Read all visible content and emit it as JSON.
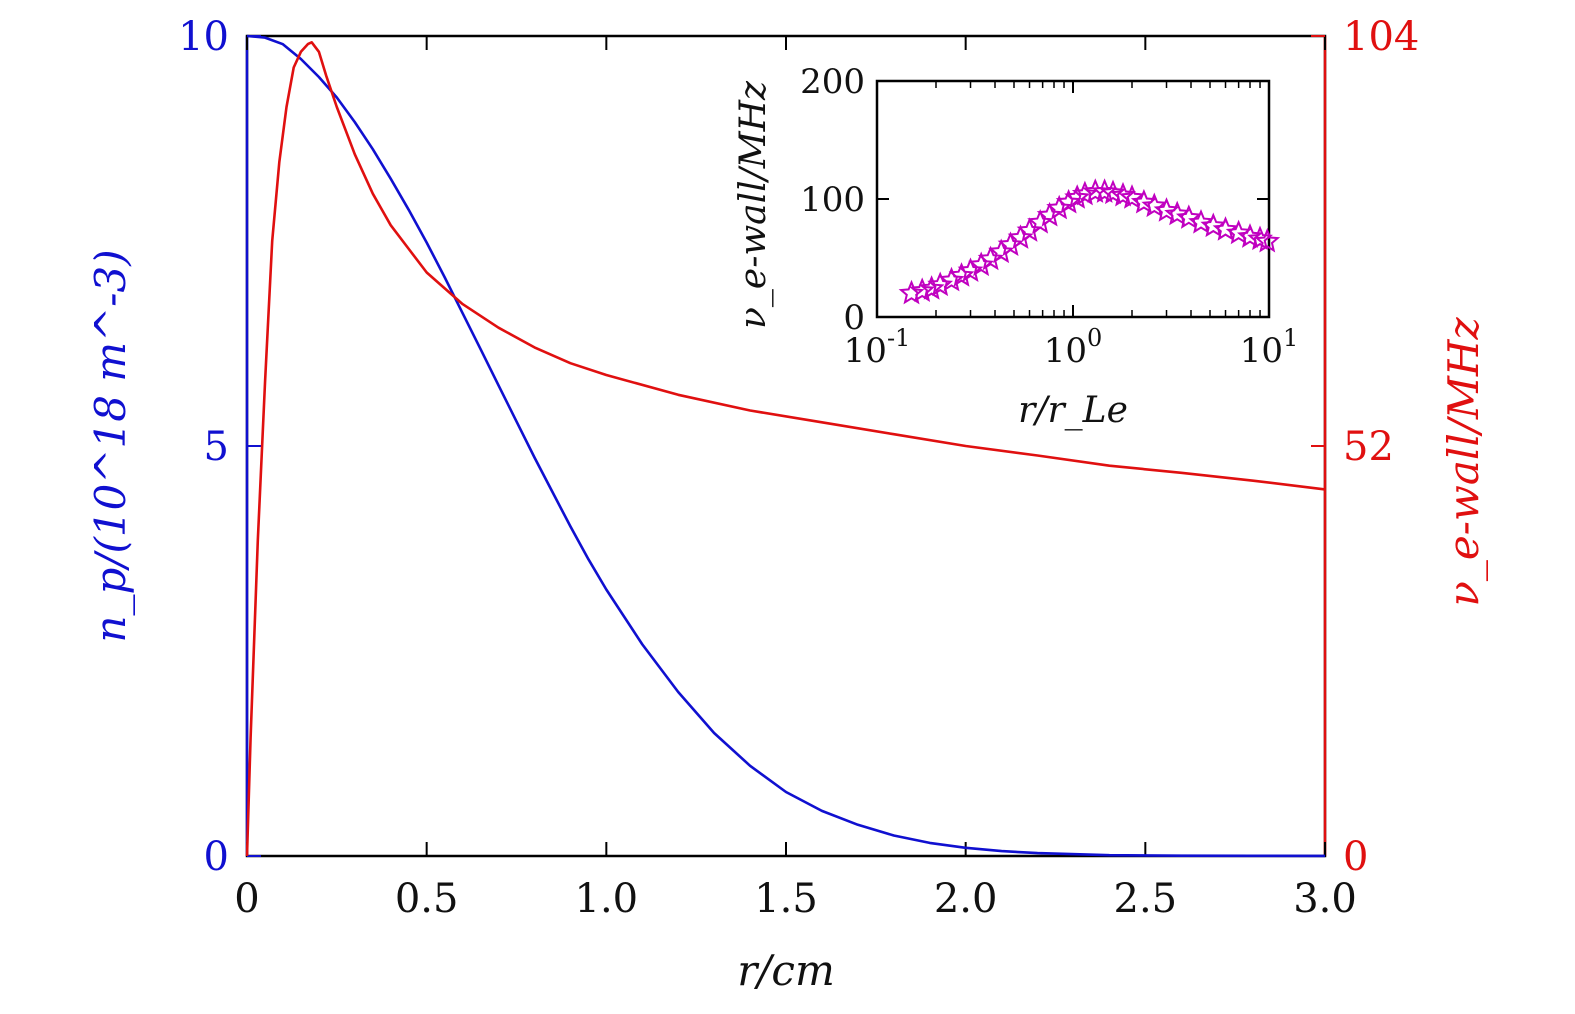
{
  "chart_data": [
    {
      "type": "line",
      "xlabel": "r/cm",
      "ylabel_left": "n_p/(10^18 m^-3)",
      "ylabel_right": "ν_e-wall/MHz",
      "xlim": [
        0,
        3.0
      ],
      "ylim_left": [
        0,
        10
      ],
      "ylim_right": [
        0,
        104
      ],
      "x_ticks": [
        "0",
        "0.5",
        "1.0",
        "1.5",
        "2.0",
        "2.5",
        "3.0"
      ],
      "y_left_ticks": [
        "0",
        "5",
        "10"
      ],
      "y_right_ticks": [
        "0",
        "52",
        "104"
      ],
      "series": [
        {
          "name": "n_p",
          "axis": "left",
          "color": "#1010d0",
          "x": [
            0,
            0.05,
            0.1,
            0.15,
            0.2,
            0.25,
            0.3,
            0.35,
            0.4,
            0.45,
            0.5,
            0.55,
            0.6,
            0.65,
            0.7,
            0.75,
            0.8,
            0.85,
            0.9,
            0.95,
            1.0,
            1.1,
            1.2,
            1.3,
            1.4,
            1.5,
            1.6,
            1.7,
            1.8,
            1.9,
            2.0,
            2.1,
            2.2,
            2.4,
            2.6,
            2.8,
            3.0
          ],
          "values": [
            10.0,
            9.98,
            9.9,
            9.72,
            9.5,
            9.25,
            8.95,
            8.62,
            8.26,
            7.88,
            7.48,
            7.06,
            6.62,
            6.18,
            5.74,
            5.3,
            4.86,
            4.44,
            4.02,
            3.62,
            3.25,
            2.58,
            2.0,
            1.5,
            1.1,
            0.78,
            0.55,
            0.38,
            0.25,
            0.16,
            0.1,
            0.06,
            0.035,
            0.01,
            0.004,
            0.002,
            0.001
          ]
        },
        {
          "name": "ν_e-wall",
          "axis": "right",
          "color": "#e01010",
          "x": [
            0,
            0.01,
            0.03,
            0.05,
            0.07,
            0.09,
            0.11,
            0.13,
            0.15,
            0.17,
            0.18,
            0.2,
            0.22,
            0.25,
            0.3,
            0.35,
            0.4,
            0.45,
            0.5,
            0.6,
            0.7,
            0.8,
            0.9,
            1.0,
            1.2,
            1.4,
            1.6,
            1.8,
            2.0,
            2.2,
            2.4,
            2.6,
            2.8,
            3.0
          ],
          "values": [
            0,
            15,
            40,
            60,
            78,
            88,
            95,
            100,
            102,
            103,
            103.2,
            102,
            99,
            95,
            89,
            84,
            80,
            77,
            74,
            70,
            67,
            64.5,
            62.5,
            61,
            58.5,
            56.5,
            55,
            53.5,
            52,
            50.8,
            49.5,
            48.6,
            47.6,
            46.5
          ]
        }
      ]
    },
    {
      "type": "scatter",
      "inset": true,
      "marker": "star",
      "color": "#c000c0",
      "xlabel": "r/r_Le",
      "ylabel": "ν_e-wall/MHz",
      "xscale": "log",
      "xlim": [
        0.1,
        10
      ],
      "ylim": [
        0,
        200
      ],
      "x_ticks": [
        "10^-1",
        "10^0",
        "10^1"
      ],
      "y_ticks": [
        "0",
        "100",
        "200"
      ],
      "x": [
        0.15,
        0.17,
        0.19,
        0.21,
        0.24,
        0.27,
        0.3,
        0.34,
        0.38,
        0.43,
        0.48,
        0.54,
        0.6,
        0.68,
        0.76,
        0.85,
        0.95,
        1.05,
        1.15,
        1.3,
        1.45,
        1.6,
        1.8,
        2.0,
        2.3,
        2.6,
        3.0,
        3.4,
        3.9,
        4.5,
        5.2,
        6.0,
        7.0,
        8.0,
        9.0,
        9.8
      ],
      "values": [
        20,
        22,
        24,
        27,
        31,
        35,
        39,
        44,
        49,
        55,
        61,
        67,
        73,
        80,
        86,
        92,
        97,
        101,
        104,
        106,
        106,
        105,
        103,
        101,
        97,
        94,
        90,
        87,
        84,
        80,
        77,
        74,
        71,
        68,
        66,
        64
      ]
    }
  ]
}
